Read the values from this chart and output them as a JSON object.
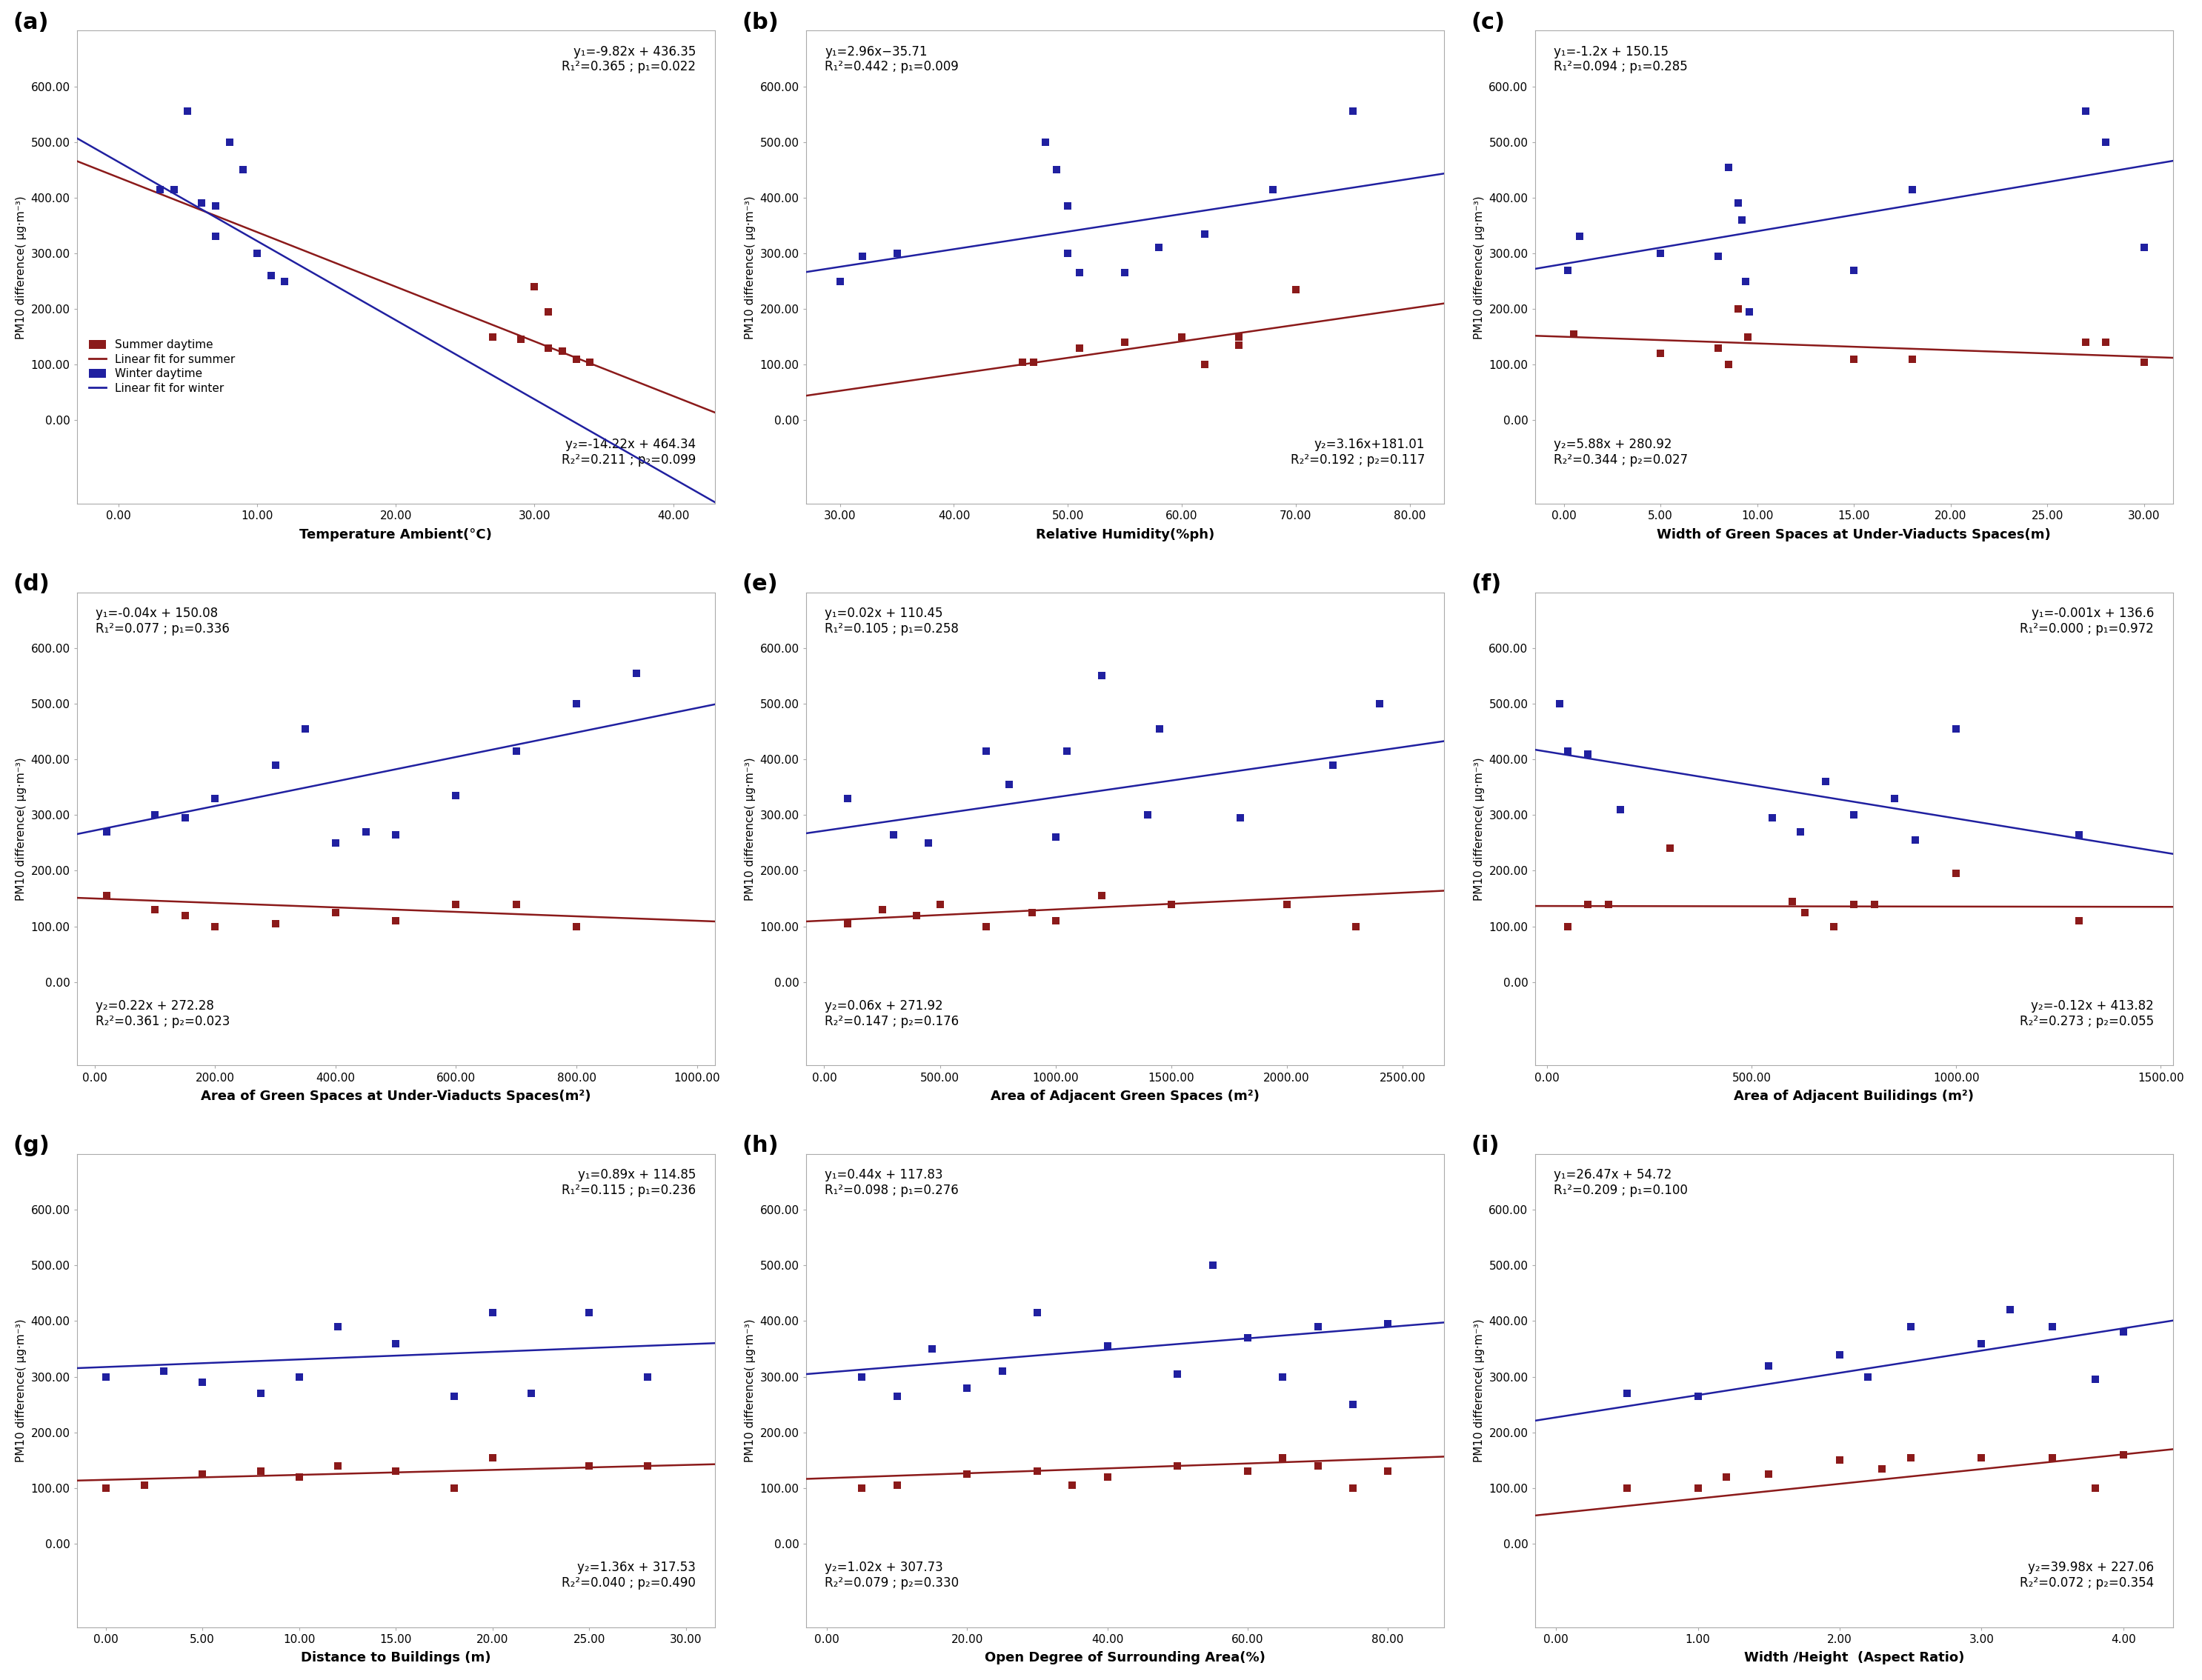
{
  "panels": [
    {
      "label": "(a)",
      "xlabel": "Temperature Ambient(°C)",
      "eq1": "y₁=-9.82x + 436.35",
      "r1": "R₁²=0.365 ; p₁=0.022",
      "eq2": "y₂=-14.22x + 464.34",
      "r2": "R₂²=0.211 ; p₂=0.099",
      "eq1_pos": "upper right",
      "eq2_pos": "lower right",
      "xlim": [
        -3,
        43
      ],
      "xticks": [
        0.0,
        10.0,
        20.0,
        30.0,
        40.0
      ],
      "xticklabels": [
        "0.00",
        "10.00",
        "20.00",
        "30.00",
        "40.00"
      ],
      "slope1": -9.82,
      "intercept1": 436.35,
      "slope2": -14.22,
      "intercept2": 464.34,
      "summer_x": [
        27,
        29,
        30,
        31,
        31,
        32,
        33,
        34
      ],
      "summer_y": [
        150,
        145,
        240,
        130,
        195,
        125,
        110,
        105
      ],
      "winter_x": [
        3,
        4,
        5,
        6,
        7,
        7,
        8,
        9,
        10,
        11,
        11,
        12
      ],
      "winter_y": [
        415,
        415,
        555,
        390,
        385,
        330,
        500,
        450,
        300,
        260,
        260,
        250
      ],
      "show_legend": true,
      "ylim": [
        -150,
        700
      ],
      "yticks": [
        0.0,
        100.0,
        200.0,
        300.0,
        400.0,
        500.0,
        600.0
      ],
      "yticklabels": [
        "0.00",
        "100.00",
        "200.00",
        "300.00",
        "400.00",
        "500.00",
        "600.00"
      ]
    },
    {
      "label": "(b)",
      "xlabel": "Relative Humidity(%ph)",
      "eq1": "y₁=2.96x−35.71",
      "r1": "R₁²=0.442 ; p₁=0.009",
      "eq2": "y₂=3.16x+181.01",
      "r2": "R₂²=0.192 ; p₂=0.117",
      "eq1_pos": "upper left",
      "eq2_pos": "lower right",
      "xlim": [
        27,
        83
      ],
      "xticks": [
        30.0,
        40.0,
        50.0,
        60.0,
        70.0,
        80.0
      ],
      "xticklabels": [
        "30.00",
        "40.00",
        "50.00",
        "60.00",
        "70.00",
        "80.00"
      ],
      "slope1": 2.96,
      "intercept1": -35.71,
      "slope2": 3.16,
      "intercept2": 181.01,
      "summer_x": [
        46,
        47,
        51,
        55,
        60,
        62,
        65,
        65,
        70
      ],
      "summer_y": [
        105,
        105,
        130,
        140,
        150,
        100,
        150,
        135,
        235
      ],
      "winter_x": [
        30,
        32,
        35,
        48,
        49,
        50,
        50,
        51,
        55,
        58,
        62,
        68,
        75
      ],
      "winter_y": [
        250,
        295,
        300,
        500,
        450,
        385,
        300,
        265,
        265,
        310,
        335,
        415,
        555
      ],
      "show_legend": false,
      "ylim": [
        -150,
        700
      ],
      "yticks": [
        0.0,
        100.0,
        200.0,
        300.0,
        400.0,
        500.0,
        600.0
      ],
      "yticklabels": [
        "0.00",
        "100.00",
        "200.00",
        "300.00",
        "400.00",
        "500.00",
        "600.00"
      ]
    },
    {
      "label": "(c)",
      "xlabel": "Width of Green Spaces at Under-Viaducts Spaces(m)",
      "eq1": "y₁=-1.2x + 150.15",
      "r1": "R₁²=0.094 ; p₁=0.285",
      "eq2": "y₂=5.88x + 280.92",
      "r2": "R₂²=0.344 ; p₂=0.027",
      "eq1_pos": "upper left",
      "eq2_pos": "lower left",
      "xlim": [
        -1.5,
        31.5
      ],
      "xticks": [
        0.0,
        5.0,
        10.0,
        15.0,
        20.0,
        25.0,
        30.0
      ],
      "xticklabels": [
        "0.00",
        "5.00",
        "10.00",
        "15.00",
        "20.00",
        "25.00",
        "30.00"
      ],
      "slope1": -1.2,
      "intercept1": 150.15,
      "slope2": 5.88,
      "intercept2": 280.92,
      "summer_x": [
        0.5,
        5,
        8,
        8.5,
        9,
        9.5,
        15,
        18,
        27,
        28,
        30
      ],
      "summer_y": [
        155,
        120,
        130,
        100,
        200,
        150,
        110,
        110,
        140,
        140,
        105
      ],
      "winter_x": [
        0.2,
        0.8,
        5,
        8,
        8.5,
        9,
        9.2,
        9.4,
        9.6,
        15,
        18,
        27,
        28,
        30
      ],
      "winter_y": [
        270,
        330,
        300,
        295,
        455,
        390,
        360,
        250,
        195,
        270,
        415,
        555,
        500,
        310
      ],
      "show_legend": false,
      "ylim": [
        -150,
        700
      ],
      "yticks": [
        0.0,
        100.0,
        200.0,
        300.0,
        400.0,
        500.0,
        600.0
      ],
      "yticklabels": [
        "0.00",
        "100.00",
        "200.00",
        "300.00",
        "400.00",
        "500.00",
        "600.00"
      ]
    },
    {
      "label": "(d)",
      "xlabel": "Area of Green Spaces at Under-Viaducts Spaces(m²)",
      "eq1": "y₁=-0.04x + 150.08",
      "r1": "R₁²=0.077 ; p₁=0.336",
      "eq2": "y₂=0.22x + 272.28",
      "r2": "R₂²=0.361 ; p₂=0.023",
      "eq1_pos": "upper left",
      "eq2_pos": "lower left",
      "xlim": [
        -30,
        1030
      ],
      "xticks": [
        0.0,
        200.0,
        400.0,
        600.0,
        800.0,
        1000.0
      ],
      "xticklabels": [
        "0.00",
        "200.00",
        "400.00",
        "600.00",
        "800.00",
        "1000.00"
      ],
      "slope1": -0.04,
      "intercept1": 150.08,
      "slope2": 0.22,
      "intercept2": 272.28,
      "summer_x": [
        20,
        100,
        150,
        200,
        300,
        400,
        500,
        600,
        700,
        800
      ],
      "summer_y": [
        155,
        130,
        120,
        100,
        105,
        125,
        110,
        140,
        140,
        100
      ],
      "winter_x": [
        20,
        100,
        150,
        200,
        300,
        350,
        400,
        450,
        500,
        600,
        700,
        800,
        900
      ],
      "winter_y": [
        270,
        300,
        295,
        330,
        390,
        455,
        250,
        270,
        265,
        335,
        415,
        500,
        555
      ],
      "show_legend": false,
      "ylim": [
        -150,
        700
      ],
      "yticks": [
        0.0,
        100.0,
        200.0,
        300.0,
        400.0,
        500.0,
        600.0
      ],
      "yticklabels": [
        "0.00",
        "100.00",
        "200.00",
        "300.00",
        "400.00",
        "500.00",
        "600.00"
      ]
    },
    {
      "label": "(e)",
      "xlabel": "Area of Adjacent Green Spaces (m²)",
      "eq1": "y₁=0.02x + 110.45",
      "r1": "R₁²=0.105 ; p₁=0.258",
      "eq2": "y₂=0.06x + 271.92",
      "r2": "R₂²=0.147 ; p₂=0.176",
      "eq1_pos": "upper left",
      "eq2_pos": "lower left",
      "xlim": [
        -80,
        2680
      ],
      "xticks": [
        0.0,
        500.0,
        1000.0,
        1500.0,
        2000.0,
        2500.0
      ],
      "xticklabels": [
        "0.00",
        "500.00",
        "1000.00",
        "1500.00",
        "2000.00",
        "2500.00"
      ],
      "slope1": 0.02,
      "intercept1": 110.45,
      "slope2": 0.06,
      "intercept2": 271.92,
      "summer_x": [
        100,
        250,
        400,
        500,
        700,
        900,
        1000,
        1200,
        1500,
        2000,
        2300
      ],
      "summer_y": [
        105,
        130,
        120,
        140,
        100,
        125,
        110,
        155,
        140,
        140,
        100
      ],
      "winter_x": [
        100,
        300,
        450,
        700,
        800,
        1000,
        1050,
        1200,
        1400,
        1450,
        1800,
        2200,
        2400
      ],
      "winter_y": [
        330,
        265,
        250,
        415,
        355,
        260,
        415,
        550,
        300,
        455,
        295,
        390,
        500
      ],
      "show_legend": false,
      "ylim": [
        -150,
        700
      ],
      "yticks": [
        0.0,
        100.0,
        200.0,
        300.0,
        400.0,
        500.0,
        600.0
      ],
      "yticklabels": [
        "0.00",
        "100.00",
        "200.00",
        "300.00",
        "400.00",
        "500.00",
        "600.00"
      ]
    },
    {
      "label": "(f)",
      "xlabel": "Area of Adjacent Builidings (m²)",
      "eq1": "y₁=-0.001x + 136.6",
      "r1": "R₁²=0.000 ; p₁=0.972",
      "eq2": "y₂=-0.12x + 413.82",
      "r2": "R₂²=0.273 ; p₂=0.055",
      "eq1_pos": "upper right",
      "eq2_pos": "lower right",
      "xlim": [
        -30,
        1530
      ],
      "xticks": [
        0.0,
        500.0,
        1000.0,
        1500.0
      ],
      "xticklabels": [
        "0.00",
        "500.00",
        "1000.00",
        "1500.00"
      ],
      "slope1": -0.001,
      "intercept1": 136.6,
      "slope2": -0.12,
      "intercept2": 413.82,
      "summer_x": [
        50,
        100,
        150,
        300,
        600,
        630,
        700,
        750,
        800,
        1000,
        1300
      ],
      "summer_y": [
        100,
        140,
        140,
        240,
        145,
        125,
        100,
        140,
        140,
        195,
        110
      ],
      "winter_x": [
        30,
        50,
        100,
        180,
        550,
        620,
        680,
        750,
        850,
        900,
        1000,
        1300
      ],
      "winter_y": [
        500,
        415,
        410,
        310,
        295,
        270,
        360,
        300,
        330,
        255,
        455,
        265
      ],
      "show_legend": false,
      "ylim": [
        -150,
        700
      ],
      "yticks": [
        0.0,
        100.0,
        200.0,
        300.0,
        400.0,
        500.0,
        600.0
      ],
      "yticklabels": [
        "0.00",
        "100.00",
        "200.00",
        "300.00",
        "400.00",
        "500.00",
        "600.00"
      ]
    },
    {
      "label": "(g)",
      "xlabel": "Distance to Buildings (m)",
      "eq1": "y₁=0.89x + 114.85",
      "r1": "R₁²=0.115 ; p₁=0.236",
      "eq2": "y₂=1.36x + 317.53",
      "r2": "R₂²=0.040 ; p₂=0.490",
      "eq1_pos": "upper right",
      "eq2_pos": "lower right",
      "xlim": [
        -1.5,
        31.5
      ],
      "xticks": [
        0.0,
        5.0,
        10.0,
        15.0,
        20.0,
        25.0,
        30.0
      ],
      "xticklabels": [
        "0.00",
        "5.00",
        "10.00",
        "15.00",
        "20.00",
        "25.00",
        "30.00"
      ],
      "slope1": 0.89,
      "intercept1": 114.85,
      "slope2": 1.36,
      "intercept2": 317.53,
      "summer_x": [
        0,
        2,
        5,
        8,
        10,
        12,
        15,
        18,
        20,
        25,
        28
      ],
      "summer_y": [
        100,
        105,
        125,
        130,
        120,
        140,
        130,
        100,
        155,
        140,
        140
      ],
      "winter_x": [
        0,
        3,
        5,
        8,
        10,
        12,
        15,
        18,
        20,
        22,
        25,
        28
      ],
      "winter_y": [
        300,
        310,
        290,
        270,
        300,
        390,
        360,
        265,
        415,
        270,
        415,
        300
      ],
      "show_legend": false,
      "ylim": [
        -150,
        700
      ],
      "yticks": [
        0.0,
        100.0,
        200.0,
        300.0,
        400.0,
        500.0,
        600.0
      ],
      "yticklabels": [
        "0.00",
        "100.00",
        "200.00",
        "300.00",
        "400.00",
        "500.00",
        "600.00"
      ]
    },
    {
      "label": "(h)",
      "xlabel": "Open Degree of Surrounding Area(%)",
      "eq1": "y₁=0.44x + 117.83",
      "r1": "R₁²=0.098 ; p₁=0.276",
      "eq2": "y₂=1.02x + 307.73",
      "r2": "R₂²=0.079 ; p₂=0.330",
      "eq1_pos": "upper left",
      "eq2_pos": "lower left",
      "xlim": [
        -3,
        88
      ],
      "xticks": [
        0.0,
        20.0,
        40.0,
        60.0,
        80.0
      ],
      "xticklabels": [
        "0.00",
        "20.00",
        "40.00",
        "60.00",
        "80.00"
      ],
      "slope1": 0.44,
      "intercept1": 117.83,
      "slope2": 1.02,
      "intercept2": 307.73,
      "summer_x": [
        5,
        10,
        20,
        30,
        35,
        40,
        50,
        60,
        65,
        70,
        75,
        80
      ],
      "summer_y": [
        100,
        105,
        125,
        130,
        105,
        120,
        140,
        130,
        155,
        140,
        100,
        130
      ],
      "winter_x": [
        5,
        10,
        15,
        20,
        25,
        30,
        40,
        50,
        55,
        60,
        65,
        70,
        75,
        80
      ],
      "winter_y": [
        300,
        265,
        350,
        280,
        310,
        415,
        355,
        305,
        500,
        370,
        300,
        390,
        250,
        395
      ],
      "show_legend": false,
      "ylim": [
        -150,
        700
      ],
      "yticks": [
        0.0,
        100.0,
        200.0,
        300.0,
        400.0,
        500.0,
        600.0
      ],
      "yticklabels": [
        "0.00",
        "100.00",
        "200.00",
        "300.00",
        "400.00",
        "500.00",
        "600.00"
      ]
    },
    {
      "label": "(i)",
      "xlabel": "Width /Height  (Aspect Ratio)",
      "eq1": "y₁=26.47x + 54.72",
      "r1": "R₁²=0.209 ; p₁=0.100",
      "eq2": "y₂=39.98x + 227.06",
      "r2": "R₂²=0.072 ; p₂=0.354",
      "eq1_pos": "upper left",
      "eq2_pos": "lower right",
      "xlim": [
        -0.15,
        4.35
      ],
      "xticks": [
        0.0,
        1.0,
        2.0,
        3.0,
        4.0
      ],
      "xticklabels": [
        "0.00",
        "1.00",
        "2.00",
        "3.00",
        "4.00"
      ],
      "slope1": 26.47,
      "intercept1": 54.72,
      "slope2": 39.98,
      "intercept2": 227.06,
      "summer_x": [
        0.5,
        1.0,
        1.2,
        1.5,
        2.0,
        2.3,
        2.5,
        3.0,
        3.5,
        3.8,
        4.0
      ],
      "summer_y": [
        100,
        100,
        120,
        125,
        150,
        135,
        155,
        155,
        155,
        100,
        160
      ],
      "winter_x": [
        0.5,
        1.0,
        1.5,
        2.0,
        2.2,
        2.5,
        3.0,
        3.2,
        3.5,
        3.8,
        4.0
      ],
      "winter_y": [
        270,
        265,
        320,
        340,
        300,
        390,
        360,
        420,
        390,
        295,
        380
      ],
      "show_legend": false,
      "ylim": [
        -150,
        700
      ],
      "yticks": [
        0.0,
        100.0,
        200.0,
        300.0,
        400.0,
        500.0,
        600.0
      ],
      "yticklabels": [
        "0.00",
        "100.00",
        "200.00",
        "300.00",
        "400.00",
        "500.00",
        "600.00"
      ]
    }
  ],
  "summer_color": "#8B1A1A",
  "winter_color": "#2020A0",
  "ylabel": "PM10 difference( μg·m⁻³)",
  "bg_color": "#ffffff",
  "plot_bg": "#ffffff",
  "spine_color": "#aaaaaa",
  "label_fontsize": 13,
  "tick_fontsize": 11,
  "eq_fontsize": 12,
  "panel_label_fontsize": 22
}
